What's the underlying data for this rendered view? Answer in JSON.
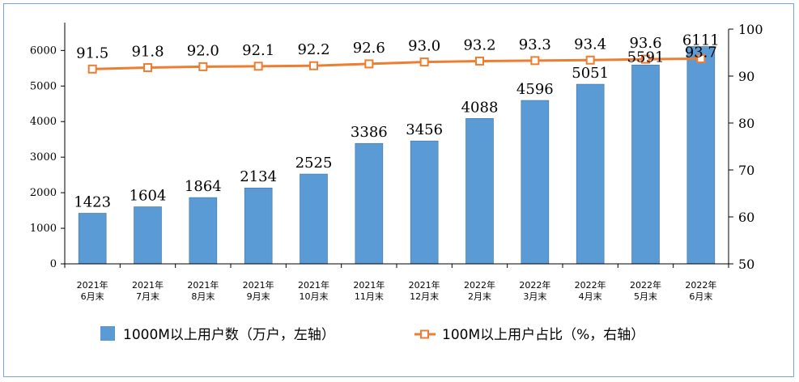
{
  "chart_data": {
    "type": "bar",
    "categories": [
      [
        "2021年",
        "6月末"
      ],
      [
        "2021年",
        "7月末"
      ],
      [
        "2021年",
        "8月末"
      ],
      [
        "2021年",
        "9月末"
      ],
      [
        "2021年",
        "10月末"
      ],
      [
        "2021年",
        "11月末"
      ],
      [
        "2021年",
        "12月末"
      ],
      [
        "2022年",
        "2月末"
      ],
      [
        "2022年",
        "3月末"
      ],
      [
        "2022年",
        "4月末"
      ],
      [
        "2022年",
        "5月末"
      ],
      [
        "2022年",
        "6月末"
      ]
    ],
    "series": [
      {
        "name": "1000M以上用户数（万户，左轴）",
        "type": "bar",
        "axis": "left",
        "color": "#5b9bd5",
        "values": [
          1423,
          1604,
          1864,
          2134,
          2525,
          3386,
          3456,
          4088,
          4596,
          5051,
          5591,
          6111
        ]
      },
      {
        "name": "100M以上用户占比（%，右轴）",
        "type": "line",
        "axis": "right",
        "color": "#ed7d31",
        "values": [
          91.5,
          91.8,
          92.0,
          92.1,
          92.2,
          92.6,
          93.0,
          93.2,
          93.3,
          93.4,
          93.6,
          93.7
        ]
      }
    ],
    "y_left": {
      "lim": [
        0,
        6600
      ],
      "ticks": [
        0,
        1000,
        2000,
        3000,
        4000,
        5000,
        6000
      ]
    },
    "y_right": {
      "lim": [
        50,
        100
      ],
      "ticks": [
        50,
        60,
        70,
        80,
        90,
        100
      ]
    },
    "legend_position": "bottom",
    "grid": false
  }
}
